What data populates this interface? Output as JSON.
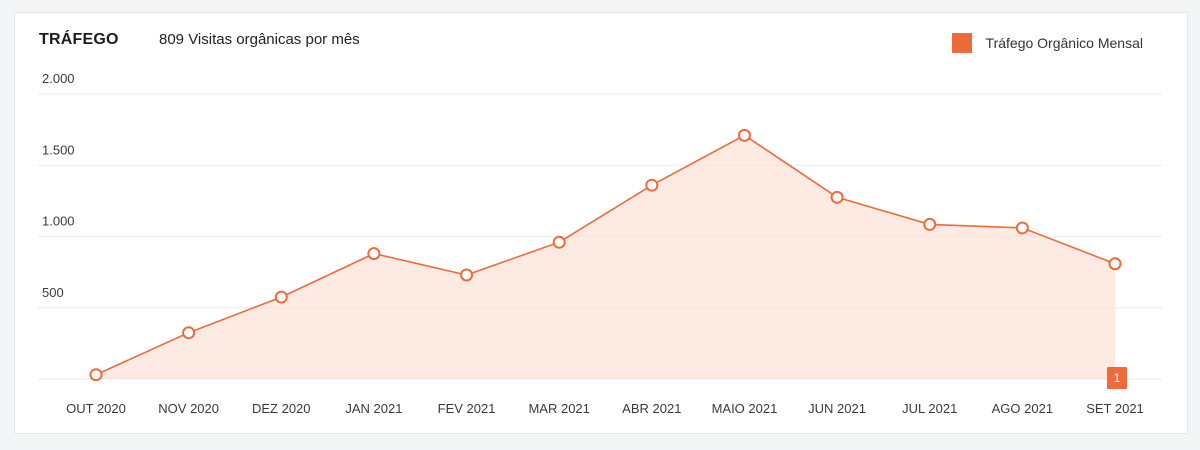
{
  "card": {
    "title": "TRÁFEGO",
    "subtitle": "809 Visitas orgânicas por mês",
    "legend_label": "Tráfego Orgânico Mensal"
  },
  "colors": {
    "accent": "#ed6b3a",
    "fill": "#fbe3da",
    "grid": "#e8ebee"
  },
  "chart_data": {
    "type": "area",
    "title": "TRÁFEGO",
    "subtitle": "809 Visitas orgânicas por mês",
    "categories": [
      "OUT 2020",
      "NOV 2020",
      "DEZ 2020",
      "JAN 2021",
      "FEV 2021",
      "MAR 2021",
      "ABR 2021",
      "MAIO 2021",
      "JUN 2021",
      "JUL 2021",
      "AGO 2021",
      "SET 2021"
    ],
    "series": [
      {
        "name": "Tráfego Orgânico Mensal",
        "values": [
          30,
          325,
          575,
          880,
          730,
          960,
          1360,
          1710,
          1275,
          1085,
          1060,
          809
        ]
      }
    ],
    "yticks": [
      500,
      1000,
      1500,
      2000
    ],
    "ytick_labels": [
      "500",
      "1.000",
      "1.500",
      "2.000"
    ],
    "ylim": [
      0,
      2000
    ],
    "grid": true,
    "legend": "top-right",
    "annotation": {
      "category": "SET 2021",
      "label": "1"
    }
  }
}
